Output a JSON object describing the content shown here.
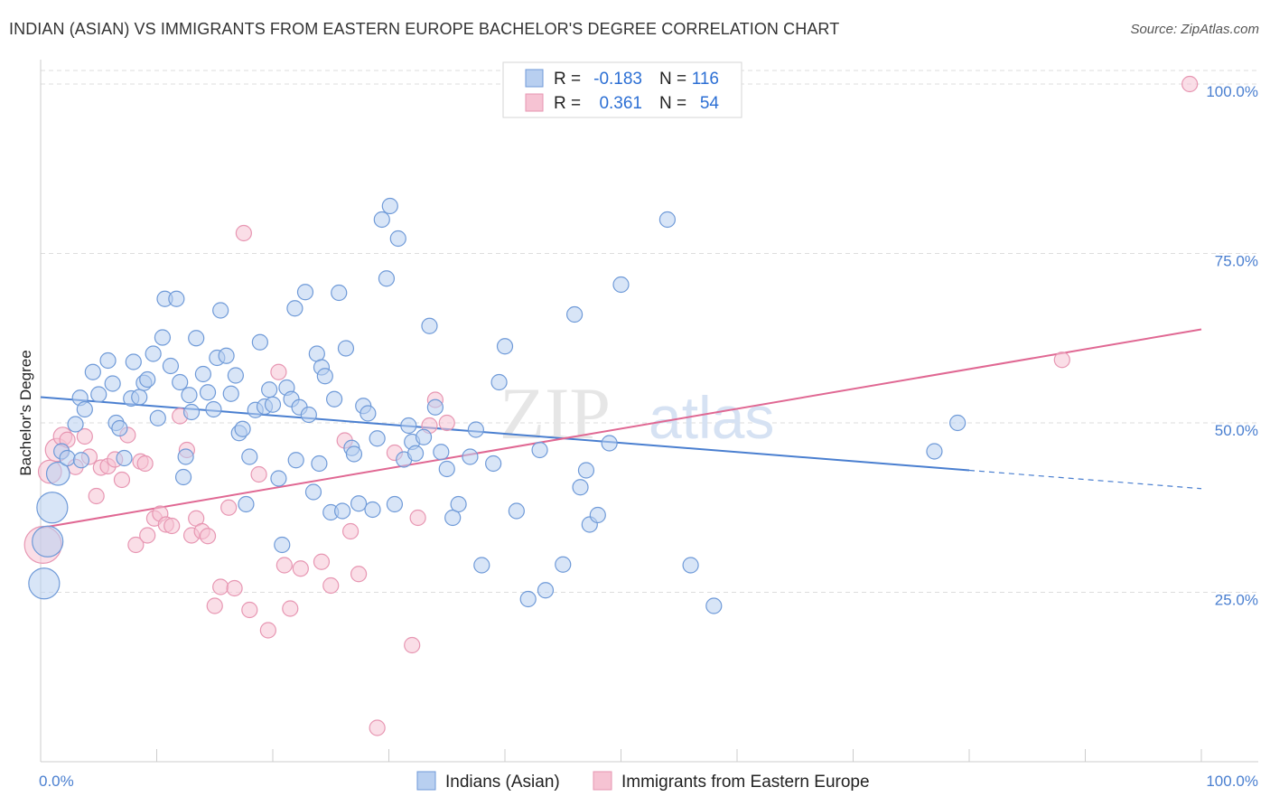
{
  "title": "INDIAN (ASIAN) VS IMMIGRANTS FROM EASTERN EUROPE BACHELOR'S DEGREE CORRELATION CHART",
  "source": "Source: ZipAtlas.com",
  "watermark": {
    "zip": "ZIP",
    "atlas": "atlas"
  },
  "colors": {
    "blue": "#4a7fd0",
    "blue_fill": "#b8cff0",
    "pink": "#e06893",
    "pink_fill": "#f6c3d3",
    "grid": "#dddddd"
  },
  "legend": {
    "rows": [
      {
        "r_label": "R =",
        "r_value": "-0.183",
        "n_label": "N =",
        "n_value": "116"
      },
      {
        "r_label": "R =",
        "r_value": "0.361",
        "n_label": "N =",
        "n_value": "54"
      }
    ]
  },
  "bottom_legend": [
    "Indians (Asian)",
    "Immigrants from Eastern Europe"
  ],
  "chart_data": {
    "type": "scatter",
    "title": "INDIAN (ASIAN) VS IMMIGRANTS FROM EASTERN EUROPE BACHELOR'S DEGREE CORRELATION CHART",
    "xlabel": "",
    "ylabel": "Bachelor's Degree",
    "xlim": [
      0,
      100
    ],
    "ylim": [
      0,
      102
    ],
    "x_tick_labels": [
      "0.0%",
      "100.0%"
    ],
    "y_ticks": [
      25,
      50,
      75,
      100
    ],
    "y_tick_labels": [
      "25.0%",
      "50.0%",
      "75.0%",
      "100.0%"
    ],
    "series": [
      {
        "name": "Indians (Asian)",
        "r": -0.183,
        "n": 116,
        "trend": {
          "x0": 0,
          "y0": 53.8,
          "x1": 80,
          "y1": 43.0,
          "dash_x1": 100,
          "dash_y1": 40.3
        },
        "points": [
          [
            0.3,
            26.3,
            2
          ],
          [
            0.6,
            32.5,
            2
          ],
          [
            1.0,
            37.5,
            2
          ],
          [
            1.5,
            42.5,
            1.5
          ],
          [
            1.8,
            45.8,
            1
          ],
          [
            2.3,
            44.8,
            1
          ],
          [
            3.0,
            49.8,
            1
          ],
          [
            3.4,
            53.7,
            1
          ],
          [
            3.8,
            52.0,
            1
          ],
          [
            4.5,
            57.5,
            1
          ],
          [
            5.0,
            54.2,
            1
          ],
          [
            5.8,
            59.2,
            1
          ],
          [
            6.2,
            55.8,
            1
          ],
          [
            6.5,
            50.0,
            1
          ],
          [
            6.8,
            49.2,
            1
          ],
          [
            7.2,
            44.8,
            1
          ],
          [
            7.8,
            53.6,
            1
          ],
          [
            8.0,
            59.0,
            1
          ],
          [
            8.5,
            53.8,
            1
          ],
          [
            8.9,
            55.9,
            1
          ],
          [
            9.2,
            56.4,
            1
          ],
          [
            9.7,
            60.2,
            1
          ],
          [
            10.1,
            50.7,
            1
          ],
          [
            10.5,
            62.6,
            1
          ],
          [
            10.7,
            68.3,
            1
          ],
          [
            11.2,
            58.4,
            1
          ],
          [
            11.7,
            68.3,
            1
          ],
          [
            12.0,
            56.0,
            1
          ],
          [
            12.3,
            42.0,
            1
          ],
          [
            12.8,
            54.1,
            1
          ],
          [
            13.0,
            51.6,
            1
          ],
          [
            13.4,
            62.5,
            1
          ],
          [
            14.0,
            57.2,
            1
          ],
          [
            14.4,
            54.5,
            1
          ],
          [
            14.9,
            52.0,
            1
          ],
          [
            15.2,
            59.6,
            1
          ],
          [
            15.5,
            66.6,
            1
          ],
          [
            16.0,
            59.9,
            1
          ],
          [
            16.4,
            54.3,
            1
          ],
          [
            16.8,
            57.0,
            1
          ],
          [
            17.1,
            48.5,
            1
          ],
          [
            17.4,
            49.1,
            1
          ],
          [
            17.7,
            38.0,
            1
          ],
          [
            18.5,
            51.9,
            1
          ],
          [
            18.9,
            61.9,
            1
          ],
          [
            19.3,
            52.4,
            1
          ],
          [
            19.7,
            54.9,
            1
          ],
          [
            20.0,
            52.7,
            1
          ],
          [
            20.5,
            41.8,
            1
          ],
          [
            20.8,
            32.0,
            1
          ],
          [
            21.2,
            55.2,
            1
          ],
          [
            21.6,
            53.5,
            1
          ],
          [
            21.9,
            66.9,
            1
          ],
          [
            22.3,
            52.3,
            1
          ],
          [
            22.8,
            69.3,
            1
          ],
          [
            23.1,
            51.2,
            1
          ],
          [
            23.5,
            39.8,
            1
          ],
          [
            23.8,
            60.2,
            1
          ],
          [
            24.2,
            58.2,
            1
          ],
          [
            24.5,
            56.9,
            1
          ],
          [
            25.0,
            36.8,
            1
          ],
          [
            25.3,
            53.5,
            1
          ],
          [
            25.7,
            69.2,
            1
          ],
          [
            26.0,
            37.0,
            1
          ],
          [
            26.3,
            61.0,
            1
          ],
          [
            26.8,
            46.3,
            1
          ],
          [
            27.0,
            45.4,
            1
          ],
          [
            27.4,
            38.1,
            1
          ],
          [
            27.8,
            52.5,
            1
          ],
          [
            28.2,
            51.4,
            1
          ],
          [
            28.6,
            37.2,
            1
          ],
          [
            29.0,
            47.7,
            1
          ],
          [
            29.4,
            80.0,
            1
          ],
          [
            29.8,
            71.3,
            1
          ],
          [
            30.1,
            82.0,
            1
          ],
          [
            30.5,
            38.0,
            1
          ],
          [
            30.8,
            77.2,
            1
          ],
          [
            31.3,
            44.6,
            1
          ],
          [
            31.7,
            49.6,
            1
          ],
          [
            32.0,
            47.2,
            1
          ],
          [
            32.3,
            45.5,
            1
          ],
          [
            33.0,
            47.9,
            1
          ],
          [
            33.5,
            64.3,
            1
          ],
          [
            34.0,
            52.3,
            1
          ],
          [
            34.5,
            45.7,
            1
          ],
          [
            35.0,
            43.2,
            1
          ],
          [
            35.5,
            36.0,
            1
          ],
          [
            36.0,
            38.0,
            1
          ],
          [
            37.0,
            45.0,
            1
          ],
          [
            37.5,
            49.0,
            1
          ],
          [
            38.0,
            29.0,
            1
          ],
          [
            39.0,
            44.0,
            1
          ],
          [
            39.5,
            56.0,
            1
          ],
          [
            40.0,
            61.3,
            1
          ],
          [
            41.0,
            37.0,
            1
          ],
          [
            42.0,
            24.0,
            1
          ],
          [
            43.0,
            46.0,
            1
          ],
          [
            43.5,
            25.3,
            1
          ],
          [
            45.0,
            29.1,
            1
          ],
          [
            46.0,
            66.0,
            1
          ],
          [
            46.5,
            40.5,
            1
          ],
          [
            47.0,
            43.0,
            1
          ],
          [
            47.3,
            35.0,
            1
          ],
          [
            48.0,
            36.4,
            1
          ],
          [
            49.0,
            47.0,
            1
          ],
          [
            50.0,
            70.4,
            1
          ],
          [
            54.0,
            80.0,
            1
          ],
          [
            56.0,
            29.0,
            1
          ],
          [
            58.0,
            23.0,
            1
          ],
          [
            77.0,
            45.8,
            1
          ],
          [
            79.0,
            50.0,
            1
          ],
          [
            3.5,
            44.5,
            1
          ],
          [
            12.5,
            45.0,
            1
          ],
          [
            18.0,
            45.0,
            1
          ],
          [
            22.0,
            44.5,
            1
          ],
          [
            24.0,
            44.0,
            1
          ]
        ]
      },
      {
        "name": "Immigrants from Eastern Europe",
        "r": 0.361,
        "n": 54,
        "trend": {
          "x0": 0,
          "y0": 34.5,
          "x1": 100,
          "y1": 63.8
        },
        "points": [
          [
            0.2,
            32.0,
            2.4
          ],
          [
            0.8,
            42.8,
            1.5
          ],
          [
            1.4,
            46.0,
            1.5
          ],
          [
            1.9,
            48.0,
            1.2
          ],
          [
            2.3,
            47.5,
            1
          ],
          [
            3.0,
            43.5,
            1
          ],
          [
            3.8,
            48.0,
            1
          ],
          [
            4.2,
            45.0,
            1
          ],
          [
            4.8,
            39.2,
            1
          ],
          [
            5.2,
            43.4,
            1
          ],
          [
            5.8,
            43.6,
            1
          ],
          [
            6.4,
            44.6,
            1
          ],
          [
            7.0,
            41.6,
            1
          ],
          [
            7.5,
            48.2,
            1
          ],
          [
            8.2,
            32.0,
            1
          ],
          [
            8.6,
            44.3,
            1
          ],
          [
            9.2,
            33.4,
            1
          ],
          [
            9.8,
            35.9,
            1
          ],
          [
            10.3,
            36.6,
            1
          ],
          [
            10.8,
            35.0,
            1
          ],
          [
            11.3,
            34.8,
            1
          ],
          [
            12.0,
            51.0,
            1
          ],
          [
            12.6,
            46.0,
            1
          ],
          [
            13.0,
            33.4,
            1
          ],
          [
            13.4,
            35.9,
            1
          ],
          [
            13.9,
            34.0,
            1
          ],
          [
            14.4,
            33.3,
            1
          ],
          [
            15.0,
            23.0,
            1
          ],
          [
            15.5,
            25.8,
            1
          ],
          [
            16.2,
            37.5,
            1
          ],
          [
            16.7,
            25.6,
            1
          ],
          [
            17.5,
            78.0,
            1
          ],
          [
            18.0,
            22.4,
            1
          ],
          [
            18.8,
            42.4,
            1
          ],
          [
            19.6,
            19.4,
            1
          ],
          [
            20.5,
            57.5,
            1
          ],
          [
            21.0,
            29.0,
            1
          ],
          [
            21.5,
            22.6,
            1
          ],
          [
            22.4,
            28.5,
            1
          ],
          [
            24.2,
            29.5,
            1
          ],
          [
            25.0,
            26.0,
            1
          ],
          [
            26.2,
            47.4,
            1
          ],
          [
            26.7,
            34.0,
            1
          ],
          [
            27.4,
            27.7,
            1
          ],
          [
            29.0,
            5.0,
            1
          ],
          [
            30.5,
            45.6,
            1
          ],
          [
            32.0,
            17.2,
            1
          ],
          [
            32.5,
            36.0,
            1
          ],
          [
            33.5,
            49.6,
            1
          ],
          [
            34.0,
            53.4,
            1
          ],
          [
            35.0,
            50.0,
            1
          ],
          [
            88.0,
            59.3,
            1
          ],
          [
            99.0,
            100.0,
            1
          ],
          [
            9.0,
            44.0,
            1
          ]
        ]
      }
    ]
  }
}
